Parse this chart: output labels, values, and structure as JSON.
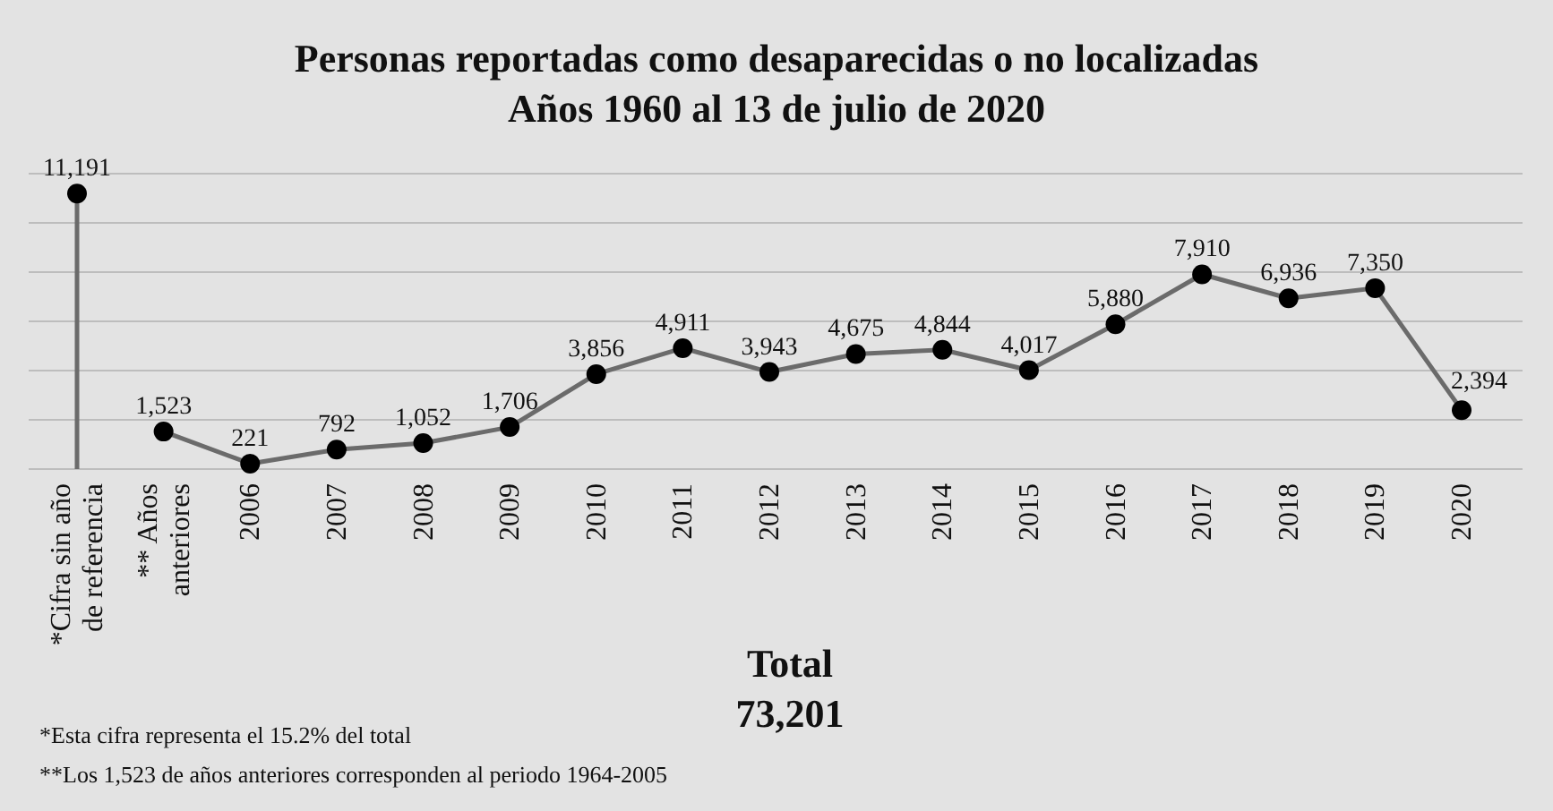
{
  "chart_data": {
    "type": "line",
    "title": "Personas reportadas como desaparecidas o no localizadas",
    "subtitle": "Años 1960 al 13 de julio de 2020",
    "categories": [
      "*Cifra sin año de referencia",
      "** Años anteriores",
      "2006",
      "2007",
      "2008",
      "2009",
      "2010",
      "2011",
      "2012",
      "2013",
      "2014",
      "2015",
      "2016",
      "2017",
      "2018",
      "2019",
      "2020"
    ],
    "series": [
      {
        "type": "lollipop",
        "color": "#6b6b6b",
        "colors": [
          "#000000",
          null,
          null,
          null,
          null,
          null,
          null,
          null,
          null,
          null,
          null,
          null,
          null,
          null,
          null,
          null,
          null
        ],
        "values": [
          11191,
          null,
          null,
          null,
          null,
          null,
          null,
          null,
          null,
          null,
          null,
          null,
          null,
          null,
          null,
          null,
          null
        ],
        "value_labels": [
          "11,191",
          null,
          null,
          null,
          null,
          null,
          null,
          null,
          null,
          null,
          null,
          null,
          null,
          null,
          null,
          null,
          null
        ]
      },
      {
        "color": "#6b6b6b",
        "colors": [
          null,
          "#000000",
          "#000000",
          "#000000",
          "#000000",
          "#000000",
          "#000000",
          "#000000",
          "#000000",
          "#000000",
          "#000000",
          "#000000",
          "#000000",
          "#000000",
          "#000000",
          "#000000",
          "#000000"
        ],
        "values": [
          null,
          1523,
          221,
          792,
          1052,
          1706,
          3856,
          4911,
          3943,
          4675,
          4844,
          4017,
          5880,
          7910,
          6936,
          7350,
          2394
        ],
        "value_labels": [
          null,
          "1,523",
          "221",
          "792",
          "1,052",
          "1,706",
          "3,856",
          "4,911",
          "3,943",
          "4,675",
          "4,844",
          "4,017",
          "5,880",
          "7,910",
          "6,936",
          "7,350",
          "2,394"
        ]
      }
    ],
    "ylim": [
      0,
      12000
    ],
    "yticks": [
      0,
      2000,
      4000,
      6000,
      8000,
      10000,
      12000
    ],
    "tick_labels": "x",
    "grid": "y",
    "marker": "circle",
    "line_style": "solid",
    "annotations": [
      "Total\n73,201",
      "*Esta cifra representa el 15.2% del total",
      "**Los 1,523 de años anteriores corresponden al periodo 1964-2005"
    ]
  }
}
